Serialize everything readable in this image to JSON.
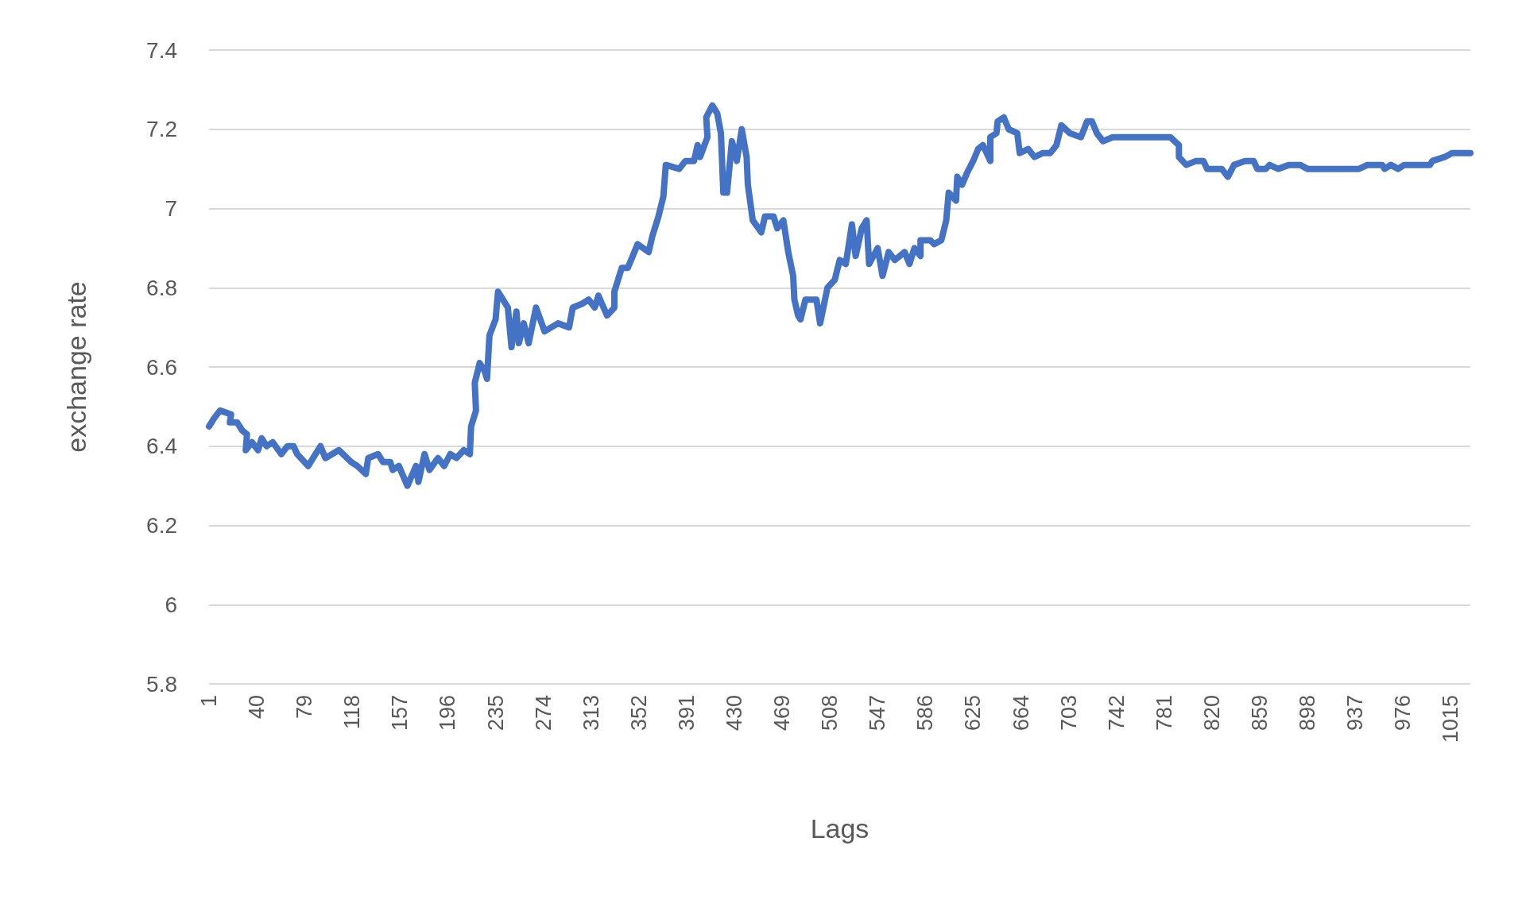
{
  "chart_data": {
    "type": "line",
    "xlabel": "Lags",
    "ylabel": "exchange rate",
    "grid": "y",
    "line_style": "solid",
    "xlim": [
      1,
      1031
    ],
    "xticks": [
      1,
      40,
      79,
      118,
      157,
      196,
      235,
      274,
      313,
      352,
      391,
      430,
      469,
      508,
      547,
      586,
      625,
      664,
      703,
      742,
      781,
      820,
      859,
      898,
      937,
      976,
      1015
    ],
    "ylim": [
      5.8,
      7.4
    ],
    "yticks": [
      5.8,
      6,
      6.2,
      6.4,
      6.6,
      6.8,
      7,
      7.2,
      7.4
    ],
    "series": [
      {
        "color": "#4472c4",
        "x": [
          1,
          5,
          10,
          19,
          18,
          24,
          28,
          32,
          31,
          36,
          41,
          44,
          48,
          53,
          60,
          65,
          70,
          73,
          82,
          86,
          92,
          96,
          107,
          117,
          122,
          129,
          131,
          139,
          143,
          149,
          151,
          156,
          163,
          170,
          172,
          177,
          181,
          188,
          193,
          198,
          203,
          209,
          214,
          215,
          219,
          218,
          222,
          226,
          228,
          230,
          235,
          237,
          241,
          245,
          248,
          252,
          254,
          258,
          262,
          268,
          275,
          286,
          295,
          298,
          306,
          311,
          316,
          319,
          326,
          332,
          332,
          338,
          343,
          351,
          360,
          363,
          368,
          372,
          374,
          385,
          390,
          397,
          400,
          402,
          408,
          407,
          412,
          416,
          419,
          421,
          424,
          428,
          432,
          436,
          440,
          441,
          445,
          452,
          455,
          462,
          465,
          470,
          474,
          478,
          479,
          482,
          484,
          488,
          497,
          500,
          506,
          512,
          516,
          521,
          526,
          529,
          534,
          538,
          540,
          547,
          551,
          556,
          561,
          569,
          573,
          577,
          582,
          582,
          590,
          593,
          599,
          603,
          605,
          611,
          612,
          616,
          620,
          625,
          629,
          633,
          639,
          639,
          644,
          645,
          650,
          654,
          661,
          663,
          670,
          675,
          682,
          688,
          693,
          697,
          704,
          713,
          718,
          722,
          726,
          731,
          739,
          786,
          793,
          793,
          799,
          807,
          813,
          816,
          828,
          833,
          838,
          847,
          854,
          857,
          864,
          867,
          874,
          883,
          892,
          898,
          905,
          919,
          936,
          940,
          947,
          959,
          961,
          966,
          972,
          977,
          998,
          1000,
          1010,
          1016,
          1031
        ],
        "values": [
          6.45,
          6.47,
          6.49,
          6.48,
          6.46,
          6.46,
          6.44,
          6.43,
          6.39,
          6.41,
          6.39,
          6.42,
          6.4,
          6.41,
          6.38,
          6.4,
          6.4,
          6.38,
          6.35,
          6.37,
          6.4,
          6.37,
          6.39,
          6.36,
          6.35,
          6.33,
          6.37,
          6.38,
          6.36,
          6.36,
          6.34,
          6.35,
          6.3,
          6.35,
          6.31,
          6.38,
          6.34,
          6.37,
          6.35,
          6.38,
          6.37,
          6.39,
          6.38,
          6.45,
          6.49,
          6.56,
          6.61,
          6.59,
          6.57,
          6.68,
          6.72,
          6.79,
          6.77,
          6.75,
          6.65,
          6.74,
          6.66,
          6.71,
          6.66,
          6.75,
          6.69,
          6.71,
          6.7,
          6.75,
          6.76,
          6.77,
          6.75,
          6.78,
          6.73,
          6.75,
          6.79,
          6.85,
          6.85,
          6.91,
          6.89,
          6.93,
          6.98,
          7.03,
          7.11,
          7.1,
          7.12,
          7.12,
          7.16,
          7.13,
          7.18,
          7.23,
          7.26,
          7.24,
          7.19,
          7.04,
          7.04,
          7.17,
          7.12,
          7.2,
          7.13,
          7.06,
          6.97,
          6.94,
          6.98,
          6.98,
          6.95,
          6.97,
          6.89,
          6.83,
          6.77,
          6.73,
          6.72,
          6.77,
          6.77,
          6.71,
          6.8,
          6.82,
          6.87,
          6.86,
          6.96,
          6.88,
          6.95,
          6.97,
          6.86,
          6.9,
          6.83,
          6.89,
          6.87,
          6.89,
          6.86,
          6.9,
          6.88,
          6.92,
          6.92,
          6.91,
          6.92,
          6.97,
          7.04,
          7.02,
          7.08,
          7.06,
          7.09,
          7.12,
          7.15,
          7.16,
          7.12,
          7.18,
          7.19,
          7.22,
          7.23,
          7.2,
          7.19,
          7.14,
          7.15,
          7.13,
          7.14,
          7.14,
          7.16,
          7.21,
          7.19,
          7.18,
          7.22,
          7.22,
          7.19,
          7.17,
          7.18,
          7.18,
          7.16,
          7.13,
          7.11,
          7.12,
          7.12,
          7.1,
          7.1,
          7.08,
          7.11,
          7.12,
          7.12,
          7.1,
          7.1,
          7.11,
          7.1,
          7.11,
          7.11,
          7.1,
          7.1,
          7.1,
          7.1,
          7.1,
          7.11,
          7.11,
          7.1,
          7.11,
          7.1,
          7.11,
          7.11,
          7.12,
          7.13,
          7.14,
          7.14
        ]
      }
    ]
  }
}
